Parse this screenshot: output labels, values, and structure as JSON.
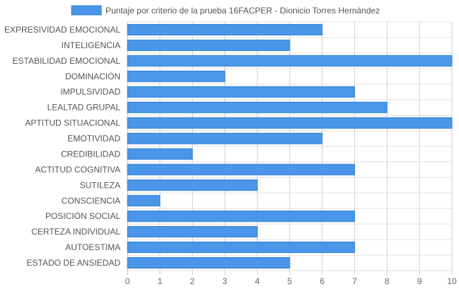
{
  "chart_data": {
    "type": "bar",
    "orientation": "horizontal",
    "categories": [
      "EXPRESIVIDAD EMOCIONAL",
      "INTELIGENCIA",
      "ESTABILIDAD EMOCIONAL",
      "DOMINACIÓN",
      "IMPULSIVIDAD",
      "LEALTAD GRUPAL",
      "APTITUD SITUACIONAL",
      "EMOTIVIDAD",
      "CREDIBILIDAD",
      "ACTITUD COGNITIVA",
      "SUTILEZA",
      "CONSCIENCIA",
      "POSICIÓN SOCIAL",
      "CERTEZA INDIVIDUAL",
      "AUTOESTIMA",
      "ESTADO DE ANSIEDAD"
    ],
    "series": [
      {
        "name": "Puntaje por criterio de la prueba 16FACPER - Dionicio Torres Hernández",
        "values": [
          6,
          5,
          10,
          3,
          7,
          8,
          10,
          6,
          2,
          7,
          4,
          1,
          7,
          4,
          7,
          5
        ],
        "color": "#4a96e8",
        "border_color": "#2f7fd6"
      }
    ],
    "xlim": [
      0,
      10
    ],
    "x_ticks": [
      "0",
      "1",
      "2",
      "3",
      "4",
      "5",
      "6",
      "7",
      "8",
      "9",
      "10"
    ],
    "grid": true,
    "legend_position": "top",
    "title": "",
    "xlabel": "",
    "ylabel": ""
  }
}
